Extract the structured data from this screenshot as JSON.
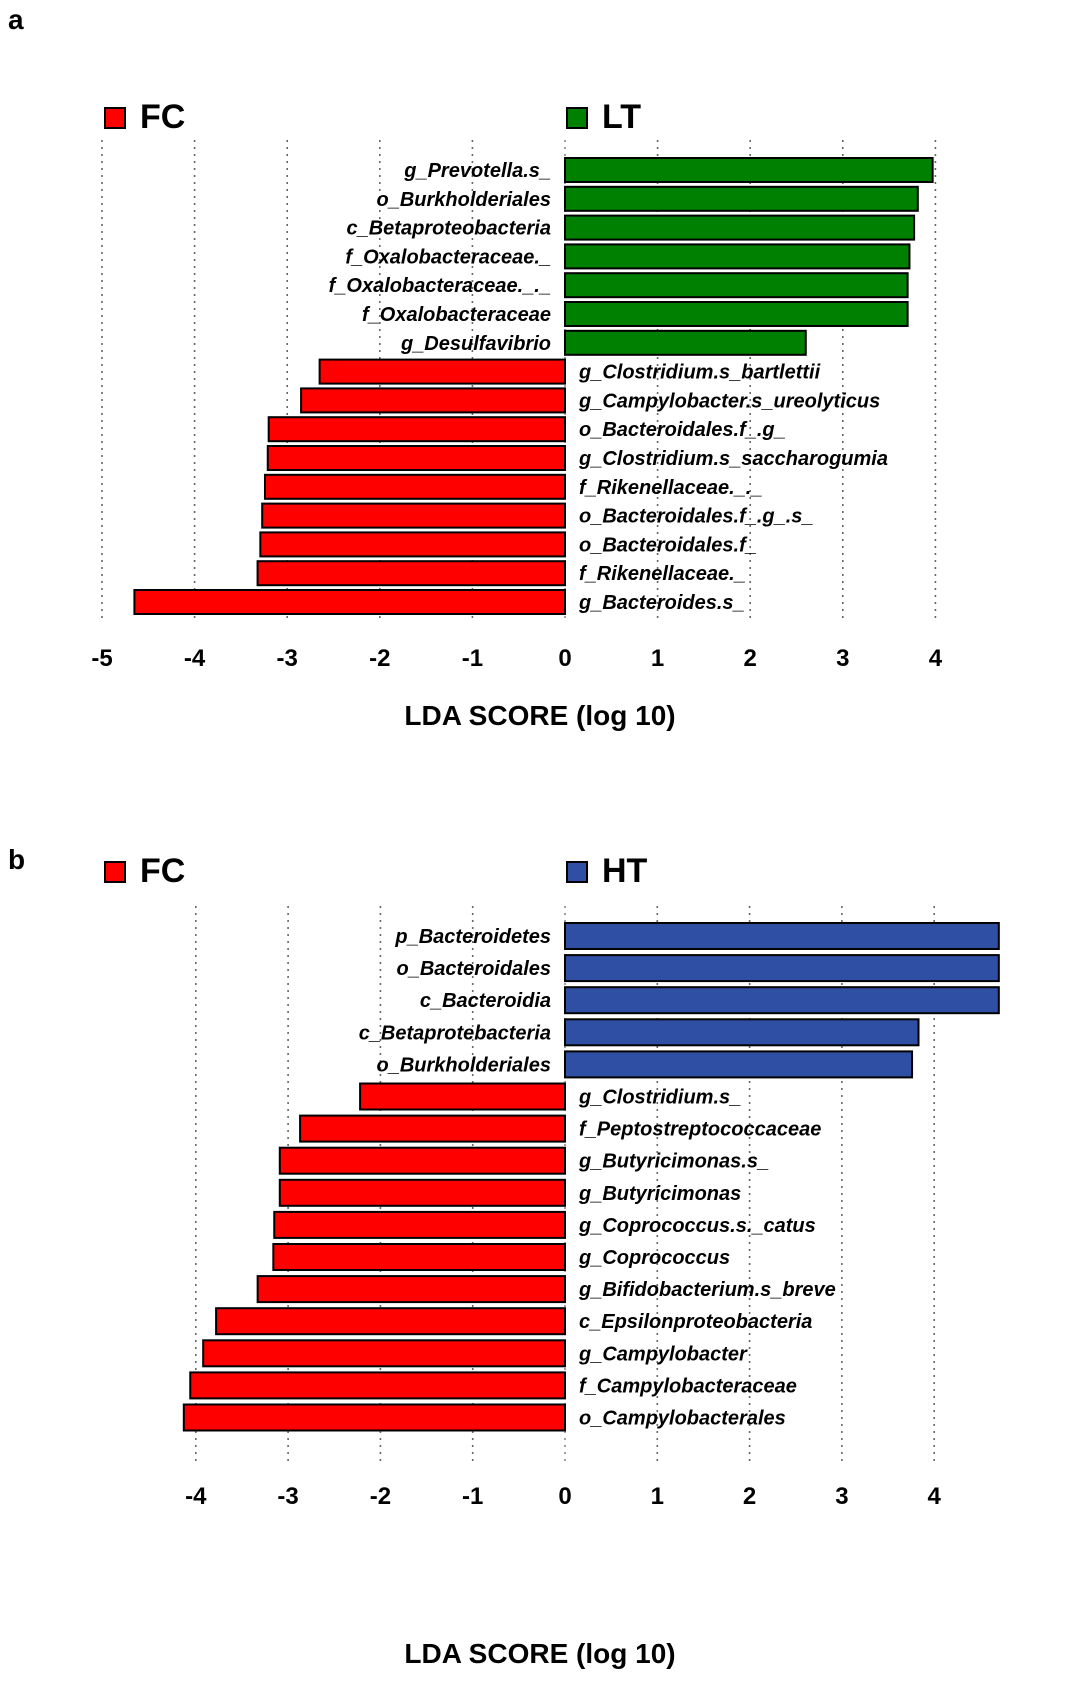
{
  "chart_data": [
    {
      "panel": "a",
      "type": "bar",
      "orientation": "horizontal",
      "xlabel": "LDA SCORE (log 10)",
      "xlim": [
        -5,
        4.3
      ],
      "xticks": [
        -5,
        -4,
        -3,
        -2,
        -1,
        0,
        1,
        2,
        3,
        4
      ],
      "grid": true,
      "legend": [
        {
          "name": "FC",
          "color": "#ff0000"
        },
        {
          "name": "LT",
          "color": "#008000"
        }
      ],
      "categories": [
        "g_Prevotella.s_",
        "o_Burkholderiales",
        "c_Betaproteobacteria",
        "f_Oxalobacteraceae._",
        "f_Oxalobacteraceae._._",
        "f_Oxalobacteraceae",
        "g_Desulfavibrio",
        "g_Clostridium.s_bartlettii",
        "g_Campylobacter.s_ureolyticus",
        "o_Bacteroidales.f_.g_",
        "g_Clostridium.s_saccharogumia",
        "f_Rikenellaceae._._",
        "o_Bacteroidales.f_.g_.s_",
        "o_Bacteroidales.f_",
        "f_Rikenellaceae._",
        "g_Bacteroides.s_"
      ],
      "values": [
        3.97,
        3.81,
        3.77,
        3.72,
        3.7,
        3.7,
        2.6,
        -2.65,
        -2.85,
        -3.2,
        -3.21,
        -3.24,
        -3.27,
        -3.29,
        -3.32,
        -4.65
      ],
      "groups": [
        "LT",
        "LT",
        "LT",
        "LT",
        "LT",
        "LT",
        "LT",
        "FC",
        "FC",
        "FC",
        "FC",
        "FC",
        "FC",
        "FC",
        "FC",
        "FC"
      ]
    },
    {
      "panel": "b",
      "type": "bar",
      "orientation": "horizontal",
      "xlabel": "LDA SCORE (log 10)",
      "xlim": [
        -4.3,
        4.7
      ],
      "xticks": [
        -4,
        -3,
        -2,
        -1,
        0,
        1,
        2,
        3,
        4
      ],
      "grid": true,
      "legend": [
        {
          "name": "FC",
          "color": "#ff0000"
        },
        {
          "name": "HT",
          "color": "#2e4fa3"
        }
      ],
      "categories": [
        "p_Bacteroidetes",
        "o_Bacteroidales",
        "c_Bacteroidia",
        "c_Betaprotebacteria",
        "o_Burkholderiales",
        "g_Clostridium.s_",
        "f_Peptostreptococcaceae",
        "g_Butyricimonas.s_",
        "g_Butyricimonas",
        "g_Coprococcus.s._catus",
        "g_Coprococcus",
        "g_Bifidobacterium.s_breve",
        "c_Epsilonproteobacteria",
        "g_Campylobacter",
        "f_Campylobacteraceae",
        "o_Campylobacterales"
      ],
      "values": [
        4.7,
        4.7,
        4.7,
        3.83,
        3.76,
        -2.22,
        -2.87,
        -3.09,
        -3.09,
        -3.15,
        -3.16,
        -3.33,
        -3.78,
        -3.92,
        -4.06,
        -4.13
      ],
      "groups": [
        "HT",
        "HT",
        "HT",
        "HT",
        "HT",
        "FC",
        "FC",
        "FC",
        "FC",
        "FC",
        "FC",
        "FC",
        "FC",
        "FC",
        "FC",
        "FC"
      ]
    }
  ],
  "panels": {
    "a": {
      "letter": "a"
    },
    "b": {
      "letter": "b"
    }
  }
}
